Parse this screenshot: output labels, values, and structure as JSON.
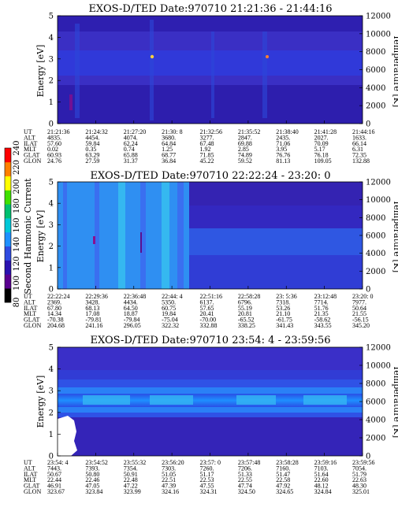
{
  "colorbar": {
    "label": "Second Harmonic Current",
    "ticks": [
      "80",
      "100",
      "120",
      "140",
      "160",
      "180",
      "200",
      "220",
      "240"
    ],
    "colors": [
      "#000000",
      "#5a0090",
      "#2a12b0",
      "#2f4be0",
      "#1e90ff",
      "#00c8d8",
      "#00c070",
      "#40e000",
      "#ffff00",
      "#ff8000",
      "#ff0000"
    ]
  },
  "chart_data": [
    {
      "type": "heatmap",
      "title": "EXOS-D/TED   Date:970710  21:21:36 - 21:44:16",
      "ylabel": "Energy [eV]",
      "ylabel_right": "Temperature [K]",
      "ylim": [
        0,
        5
      ],
      "ylim_right": [
        0,
        12000
      ],
      "yticks": [
        "0",
        "1",
        "2",
        "3",
        "4",
        "5"
      ],
      "yticks_right": [
        "0",
        "2000",
        "4000",
        "6000",
        "8000",
        "10000",
        "12000"
      ],
      "table_labels": [
        "UT",
        "ALT",
        "ILAT",
        "MLT",
        "GLAT",
        "GLON"
      ],
      "columns": [
        [
          "21:21:36",
          "4835.",
          "57.60",
          "0.02",
          "60.93",
          "24.76"
        ],
        [
          "21:24:32",
          "4454.",
          "59.84",
          "0.35",
          "63.29",
          "27.59"
        ],
        [
          "21:27:20",
          "4074.",
          "62.24",
          "0.74",
          "65.88",
          "31.37"
        ],
        [
          "21:30: 8",
          "3680.",
          "64.84",
          "1.25",
          "68.77",
          "36.84"
        ],
        [
          "21:32:56",
          "3277.",
          "67.48",
          "1.92",
          "71.85",
          "45.22"
        ],
        [
          "21:35:52",
          "2847.",
          "69.88",
          "2.85",
          "74.89",
          "59.52"
        ],
        [
          "21:38:40",
          "2435.",
          "71.06",
          "3.95",
          "76.76",
          "81.13"
        ],
        [
          "21:41:28",
          "2027.",
          "70.09",
          "5.17",
          "76.18",
          "109.05"
        ],
        [
          "21:44:16",
          "1633.",
          "66.14",
          "6.31",
          "72.35",
          "132.88"
        ]
      ]
    },
    {
      "type": "heatmap",
      "title": "EXOS-D/TED   Date:970710  22:22:24 - 23:20: 0",
      "ylabel": "Energy [eV]",
      "ylabel_right": "Temperature [K]",
      "ylim": [
        0,
        5
      ],
      "ylim_right": [
        0,
        12000
      ],
      "yticks": [
        "0",
        "1",
        "2",
        "3",
        "4",
        "5"
      ],
      "yticks_right": [
        "0",
        "2000",
        "4000",
        "6000",
        "8000",
        "10000",
        "12000"
      ],
      "table_labels": [
        "UT",
        "ALT",
        "ILAT",
        "MLT",
        "GLAT",
        "GLON"
      ],
      "columns": [
        [
          "22:22:24",
          "2369.",
          "67.80",
          "14.34",
          "-70.38",
          "204.68"
        ],
        [
          "22:29:36",
          "3428.",
          "68.13",
          "17.08",
          "-79.81",
          "241.16"
        ],
        [
          "22:36:48",
          "4434.",
          "64.50",
          "18.87",
          "-79.84",
          "296.05"
        ],
        [
          "22:44: 4",
          "5350.",
          "60.75",
          "19.84",
          "-75.04",
          "322.32"
        ],
        [
          "22:51:16",
          "6137.",
          "57.65",
          "20.41",
          "-70.00",
          "332.88"
        ],
        [
          "22:58:28",
          "6796.",
          "55.19",
          "20.81",
          "-65.52",
          "338.25"
        ],
        [
          "23: 5:36",
          "7318.",
          "53.26",
          "21.10",
          "-61.75",
          "341.43"
        ],
        [
          "23:12:48",
          "7714.",
          "51.76",
          "21.35",
          "-58.62",
          "343.55"
        ],
        [
          "23:20: 0",
          "7977.",
          "50.64",
          "21.55",
          "-56.15",
          "345.20"
        ]
      ]
    },
    {
      "type": "heatmap",
      "title": "EXOS-D/TED   Date:970710  23:54: 4 - 23:59:56",
      "ylabel": "Energy [eV]",
      "ylabel_right": "Temperature [K]",
      "ylim": [
        0,
        5
      ],
      "ylim_right": [
        0,
        12000
      ],
      "yticks": [
        "0",
        "1",
        "2",
        "3",
        "4",
        "5"
      ],
      "yticks_right": [
        "0",
        "2000",
        "4000",
        "6000",
        "8000",
        "10000",
        "12000"
      ],
      "table_labels": [
        "UT",
        "ALT",
        "ILAT",
        "MLT",
        "GLAT",
        "GLON"
      ],
      "columns": [
        [
          "23:54: 4",
          "7443.",
          "50.67",
          "22.44",
          "46.91",
          "323.67"
        ],
        [
          "23:54:52",
          "7393.",
          "50.80",
          "22.46",
          "47.05",
          "323.84"
        ],
        [
          "23:55:32",
          "7354.",
          "50.91",
          "22.48",
          "47.22",
          "323.99"
        ],
        [
          "23:56:20",
          "7303.",
          "51.05",
          "22.51",
          "47.39",
          "324.16"
        ],
        [
          "23:57: 0",
          "7260.",
          "51.17",
          "22.53",
          "47.55",
          "324.31"
        ],
        [
          "23:57:48",
          "7206.",
          "51.33",
          "22.55",
          "47.74",
          "324.50"
        ],
        [
          "23:58:28",
          "7160.",
          "51.47",
          "22.58",
          "47.92",
          "324.65"
        ],
        [
          "23:59:16",
          "7103.",
          "51.64",
          "22.60",
          "48.12",
          "324.84"
        ],
        [
          "23:59:56",
          "7054.",
          "51.79",
          "22.63",
          "48.30",
          "325.01"
        ]
      ]
    }
  ]
}
